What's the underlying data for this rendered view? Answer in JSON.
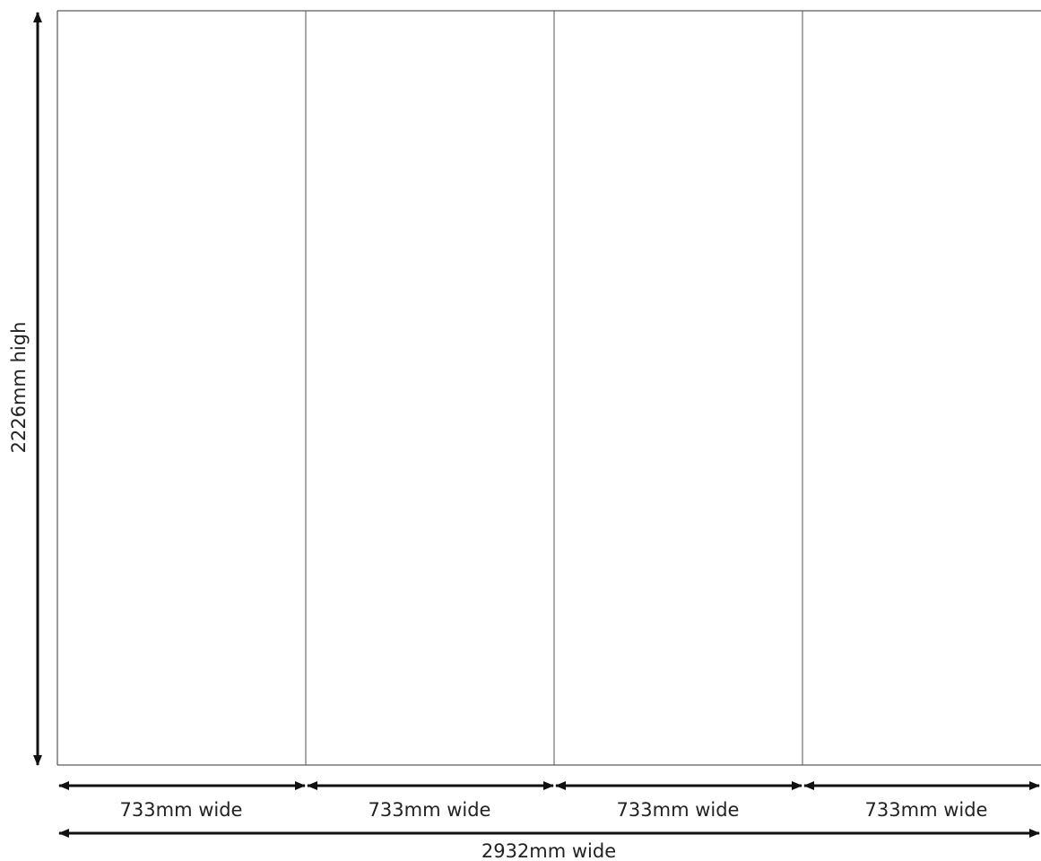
{
  "diagram": {
    "height_label": "2226mm high",
    "total_width_label": "2932mm wide",
    "panels": [
      {
        "width_label": "733mm wide"
      },
      {
        "width_label": "733mm wide"
      },
      {
        "width_label": "733mm wide"
      },
      {
        "width_label": "733mm wide"
      }
    ]
  },
  "colors": {
    "line": "#333333",
    "arrow": "#111111",
    "text": "#222222"
  }
}
